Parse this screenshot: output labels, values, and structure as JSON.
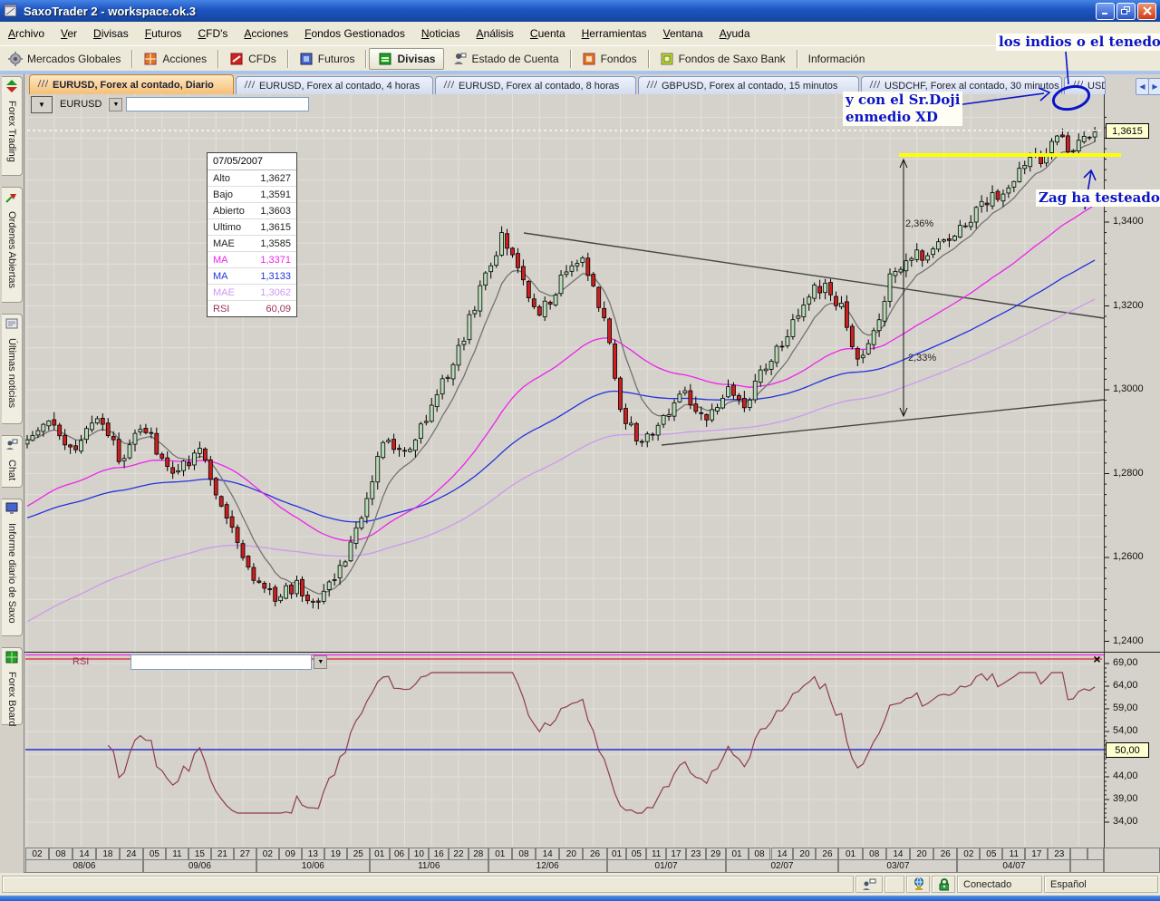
{
  "window": {
    "title": "SaxoTrader 2 - workspace.ok.3"
  },
  "menu": {
    "items": [
      "Archivo",
      "Ver",
      "Divisas",
      "Futuros",
      "CFD's",
      "Acciones",
      "Fondos Gestionados",
      "Noticias",
      "Análisis",
      "Cuenta",
      "Herramientas",
      "Ventana",
      "Ayuda"
    ]
  },
  "toolbar": {
    "items": [
      {
        "label": "Mercados Globales"
      },
      {
        "label": "Acciones"
      },
      {
        "label": "CFDs"
      },
      {
        "label": "Futuros"
      },
      {
        "label": "Divisas"
      },
      {
        "label": "Estado de Cuenta"
      },
      {
        "label": "Fondos"
      },
      {
        "label": "Fondos de Saxo Bank"
      },
      {
        "label": "Información"
      }
    ]
  },
  "sidebar": {
    "items": [
      {
        "label": "Forex Trading"
      },
      {
        "label": "Ordenes Abiertas"
      },
      {
        "label": "Últimas noticias"
      },
      {
        "label": "Chat"
      },
      {
        "label": "Informe diario de Saxo"
      },
      {
        "label": "Forex Board"
      }
    ]
  },
  "tabs": {
    "items": [
      {
        "label": "EURUSD, Forex al contado, Diario",
        "active": true
      },
      {
        "label": "EURUSD, Forex al contado, 4 horas",
        "active": false
      },
      {
        "label": "EURUSD, Forex al contado, 8 horas",
        "active": false
      },
      {
        "label": "GBPUSD, Forex al contado, 15 minutos",
        "active": false
      },
      {
        "label": "USDCHF, Forex al contado, 30 minutos",
        "active": false
      },
      {
        "label": "USD",
        "active": false
      }
    ]
  },
  "chart_toolbar": {
    "symbol": "EURUSD",
    "input_value": ""
  },
  "rsi_panel": {
    "label": "RSI",
    "close_glyph": "×",
    "marker": "50,00"
  },
  "price_marker": "1,3615",
  "tooltip": {
    "date": "07/05/2007",
    "rows": [
      {
        "label": "Alto",
        "value": "1,3627"
      },
      {
        "label": "Bajo",
        "value": "1,3591"
      },
      {
        "label": "Abierto",
        "value": "1,3603"
      },
      {
        "label": "Ultimo",
        "value": "1,3615"
      },
      {
        "label": "MAE",
        "value": "1,3585"
      },
      {
        "label": "MA",
        "value": "1,3371"
      },
      {
        "label": "MA",
        "value": "1,3133"
      },
      {
        "label": "MAE",
        "value": "1,3062"
      },
      {
        "label": "RSI",
        "value": "60,09"
      }
    ]
  },
  "annotations": {
    "top": "los indios o el tenedor",
    "doji_line1": "y con el Sr.Doji",
    "doji_line2": "enmedio XD",
    "zag": "Zag ha testeado :)",
    "measure_top": "2,36%",
    "measure_bottom": "2,33%"
  },
  "status_bar": {
    "connected": "Conectado",
    "language": "Español"
  },
  "price_axis": {
    "labels": [
      {
        "text": "1,3400",
        "value": 1.34
      },
      {
        "text": "1,3200",
        "value": 1.32
      },
      {
        "text": "1,3000",
        "value": 1.3
      },
      {
        "text": "1,2800",
        "value": 1.28
      },
      {
        "text": "1,2600",
        "value": 1.26
      },
      {
        "text": "1,2400",
        "value": 1.24
      }
    ]
  },
  "rsi_axis": {
    "labels": [
      {
        "text": "69,00",
        "value": 69
      },
      {
        "text": "64,00",
        "value": 64
      },
      {
        "text": "59,00",
        "value": 59
      },
      {
        "text": "54,00",
        "value": 54
      },
      {
        "text": "44,00",
        "value": 44
      },
      {
        "text": "39,00",
        "value": 39
      },
      {
        "text": "34,00",
        "value": 34
      }
    ]
  },
  "colors": {
    "candle_up": "#b7dcb7",
    "candle_down": "#cc2020",
    "candle_stroke": "#000000",
    "ma_fast": "#737373",
    "ma_magenta": "#ee22ee",
    "ma_blue": "#2233dd",
    "ma_violet": "#cc99ee",
    "rsi_line": "#8e3b52",
    "rsi_mid_line": "#2233cc",
    "rsi_upper_line": "#dd2222",
    "trend_line": "#444444",
    "grid": "#e3e0d9",
    "annotation_blue": "#0a14c8",
    "yellow_level": "#ffff00"
  },
  "chart_data": {
    "type": "candlestick",
    "symbol": "EURUSD",
    "period": "Diario",
    "candle_count": 199,
    "visible_range": {
      "price_min": 1.24,
      "price_max": 1.365,
      "date_start": "08/06",
      "date_end": "05/07"
    },
    "last_candle": {
      "date": "07/05/2007",
      "open": 1.3603,
      "high": 1.3627,
      "low": 1.3591,
      "close": 1.3615
    },
    "indicators": {
      "mae_fast": 1.3585,
      "ma_magenta": 1.3371,
      "ma_blue": 1.3133,
      "mae_violet": 1.3062,
      "rsi": 60.09
    },
    "rsi_levels": {
      "upper": 70,
      "mid": 50
    },
    "yellow_level_price": 1.3558,
    "price_path_anchors": [
      [
        0,
        1.287
      ],
      [
        4,
        1.2925
      ],
      [
        9,
        1.285
      ],
      [
        13,
        1.2945
      ],
      [
        17,
        1.284
      ],
      [
        22,
        1.2905
      ],
      [
        27,
        1.28
      ],
      [
        32,
        1.2855
      ],
      [
        36,
        1.273
      ],
      [
        41,
        1.257
      ],
      [
        46,
        1.25
      ],
      [
        50,
        1.2535
      ],
      [
        54,
        1.248
      ],
      [
        58,
        1.2575
      ],
      [
        62,
        1.27
      ],
      [
        66,
        1.288
      ],
      [
        70,
        1.2845
      ],
      [
        75,
        1.296
      ],
      [
        80,
        1.309
      ],
      [
        84,
        1.324
      ],
      [
        88,
        1.3365
      ],
      [
        91,
        1.329
      ],
      [
        95,
        1.318
      ],
      [
        99,
        1.326
      ],
      [
        103,
        1.331
      ],
      [
        107,
        1.318
      ],
      [
        110,
        1.295
      ],
      [
        114,
        1.287
      ],
      [
        118,
        1.2935
      ],
      [
        122,
        1.2995
      ],
      [
        126,
        1.2935
      ],
      [
        130,
        1.3005
      ],
      [
        133,
        1.2965
      ],
      [
        137,
        1.306
      ],
      [
        141,
        1.313
      ],
      [
        145,
        1.323
      ],
      [
        148,
        1.3255
      ],
      [
        151,
        1.319
      ],
      [
        154,
        1.3075
      ],
      [
        157,
        1.3125
      ],
      [
        160,
        1.3265
      ],
      [
        164,
        1.331
      ],
      [
        168,
        1.334
      ],
      [
        172,
        1.3365
      ],
      [
        176,
        1.342
      ],
      [
        180,
        1.347
      ],
      [
        184,
        1.352
      ],
      [
        188,
        1.3555
      ],
      [
        191,
        1.36
      ],
      [
        193,
        1.3575
      ],
      [
        196,
        1.3595
      ],
      [
        198,
        1.3615
      ]
    ],
    "x_axis_months": [
      {
        "label": "08/06",
        "candles": 22,
        "days": [
          "02",
          "08",
          "14",
          "18",
          "24"
        ]
      },
      {
        "label": "09/06",
        "candles": 21,
        "days": [
          "05",
          "11",
          "15",
          "21",
          "27"
        ]
      },
      {
        "label": "10/06",
        "candles": 21,
        "days": [
          "02",
          "09",
          "13",
          "19",
          "25"
        ]
      },
      {
        "label": "11/06",
        "candles": 22,
        "days": [
          "01",
          "06",
          "10",
          "16",
          "22",
          "28"
        ]
      },
      {
        "label": "12/06",
        "candles": 22,
        "days": [
          "01",
          "08",
          "14",
          "20",
          "26"
        ]
      },
      {
        "label": "01/07",
        "candles": 22,
        "days": [
          "01",
          "05",
          "11",
          "17",
          "23",
          "29"
        ]
      },
      {
        "label": "02/07",
        "candles": 21,
        "days": [
          "01",
          "08",
          "14",
          "20",
          "26"
        ]
      },
      {
        "label": "03/07",
        "candles": 22,
        "days": [
          "01",
          "08",
          "14",
          "20",
          "26"
        ]
      },
      {
        "label": "04/07",
        "candles": 21,
        "days": [
          "02",
          "05",
          "11",
          "17",
          "23"
        ]
      },
      {
        "label": "",
        "candles": 5,
        "days": [
          "",
          ""
        ]
      }
    ]
  }
}
